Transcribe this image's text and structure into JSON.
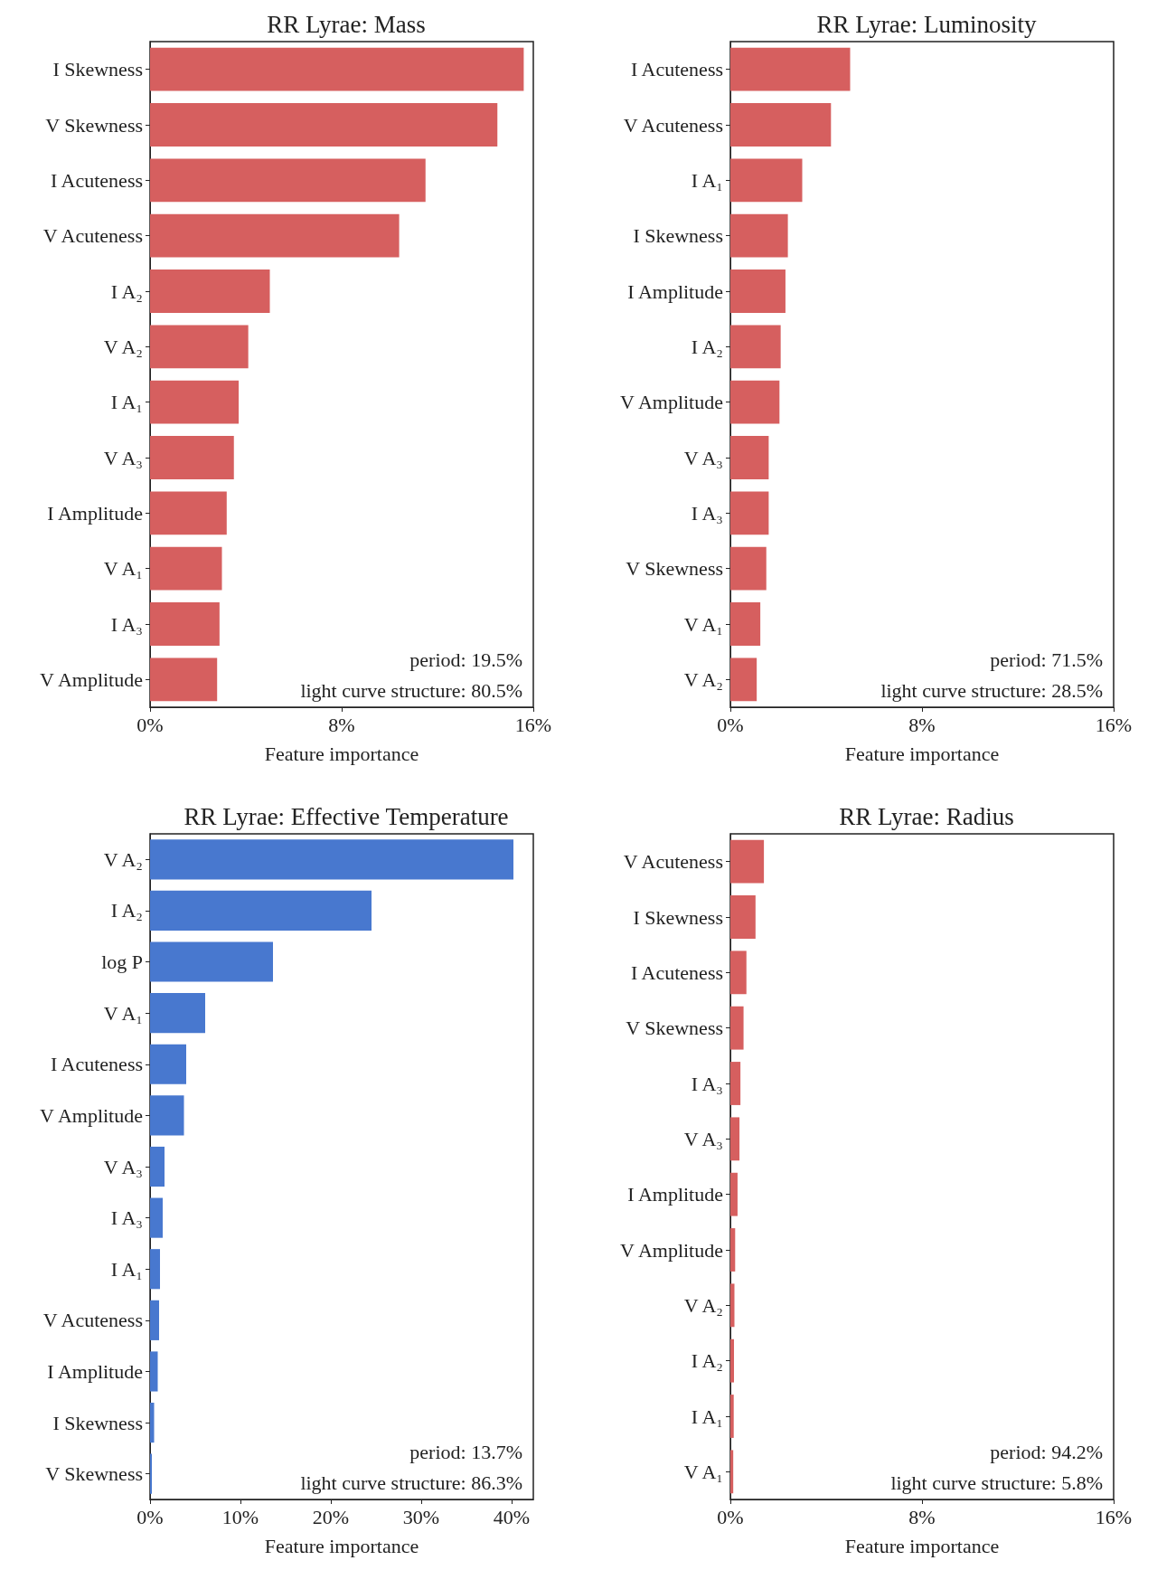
{
  "chart_data": [
    {
      "type": "bar",
      "orientation": "horizontal",
      "title": "RR Lyrae: Mass",
      "xlabel": "Feature importance",
      "categories": [
        "I Skewness",
        "V Skewness",
        "I Acuteness",
        "V Acuteness",
        "I A₂",
        "V A₂",
        "I A₁",
        "V A₃",
        "I Amplitude",
        "V A₁",
        "I A₃",
        "V Amplitude"
      ],
      "values": [
        15.6,
        14.5,
        11.5,
        10.4,
        5.0,
        4.1,
        3.7,
        3.5,
        3.2,
        3.0,
        2.9,
        2.8
      ],
      "color": "#d65f5f",
      "xlim": [
        0,
        16
      ],
      "xticks": [
        {
          "value": 0,
          "label": "0%"
        },
        {
          "value": 8,
          "label": "8%"
        },
        {
          "value": 16,
          "label": "16%"
        }
      ],
      "annotations": [
        "period: 19.5%",
        "light curve structure: 80.5%"
      ]
    },
    {
      "type": "bar",
      "orientation": "horizontal",
      "title": "RR Lyrae: Luminosity",
      "xlabel": "Feature importance",
      "categories": [
        "I Acuteness",
        "V Acuteness",
        "I A₁",
        "I Skewness",
        "I Amplitude",
        "I A₂",
        "V Amplitude",
        "V A₃",
        "I A₃",
        "V Skewness",
        "V A₁",
        "V A₂"
      ],
      "values": [
        5.0,
        4.2,
        3.0,
        2.4,
        2.3,
        2.1,
        2.05,
        1.6,
        1.6,
        1.5,
        1.25,
        1.1
      ],
      "color": "#d65f5f",
      "xlim": [
        0,
        16
      ],
      "xticks": [
        {
          "value": 0,
          "label": "0%"
        },
        {
          "value": 8,
          "label": "8%"
        },
        {
          "value": 16,
          "label": "16%"
        }
      ],
      "annotations": [
        "period: 71.5%",
        "light curve structure: 28.5%"
      ]
    },
    {
      "type": "bar",
      "orientation": "horizontal",
      "title": "RR Lyrae: Effective Temperature",
      "xlabel": "Feature importance",
      "categories": [
        "V A₂",
        "I A₂",
        "log P",
        "V A₁",
        "I Acuteness",
        "V Amplitude",
        "V A₃",
        "I A₃",
        "I A₁",
        "V Acuteness",
        "I Amplitude",
        "I Skewness",
        "V Skewness"
      ],
      "values": [
        40.2,
        24.5,
        13.6,
        6.1,
        4.0,
        3.75,
        1.6,
        1.4,
        1.1,
        1.0,
        0.85,
        0.45,
        0.2
      ],
      "color": "#4878cf",
      "xlim": [
        0,
        42.4
      ],
      "xticks": [
        {
          "value": 0,
          "label": "0%"
        },
        {
          "value": 10,
          "label": "10%"
        },
        {
          "value": 20,
          "label": "20%"
        },
        {
          "value": 30,
          "label": "30%"
        },
        {
          "value": 40,
          "label": "40%"
        }
      ],
      "annotations": [
        "period: 13.7%",
        "light curve structure: 86.3%"
      ]
    },
    {
      "type": "bar",
      "orientation": "horizontal",
      "title": "RR Lyrae: Radius",
      "xlabel": "Feature importance",
      "categories": [
        "V Acuteness",
        "I Skewness",
        "I Acuteness",
        "V Skewness",
        "I A₃",
        "V A₃",
        "I Amplitude",
        "V Amplitude",
        "V A₂",
        "I A₂",
        "I A₁",
        "V A₁"
      ],
      "values": [
        1.4,
        1.05,
        0.67,
        0.55,
        0.42,
        0.38,
        0.3,
        0.2,
        0.17,
        0.15,
        0.14,
        0.12
      ],
      "color": "#d65f5f",
      "xlim": [
        0,
        16
      ],
      "xticks": [
        {
          "value": 0,
          "label": "0%"
        },
        {
          "value": 8,
          "label": "8%"
        },
        {
          "value": 16,
          "label": "16%"
        }
      ],
      "annotations": [
        "period: 94.2%",
        "light curve structure: 5.8%"
      ]
    }
  ]
}
